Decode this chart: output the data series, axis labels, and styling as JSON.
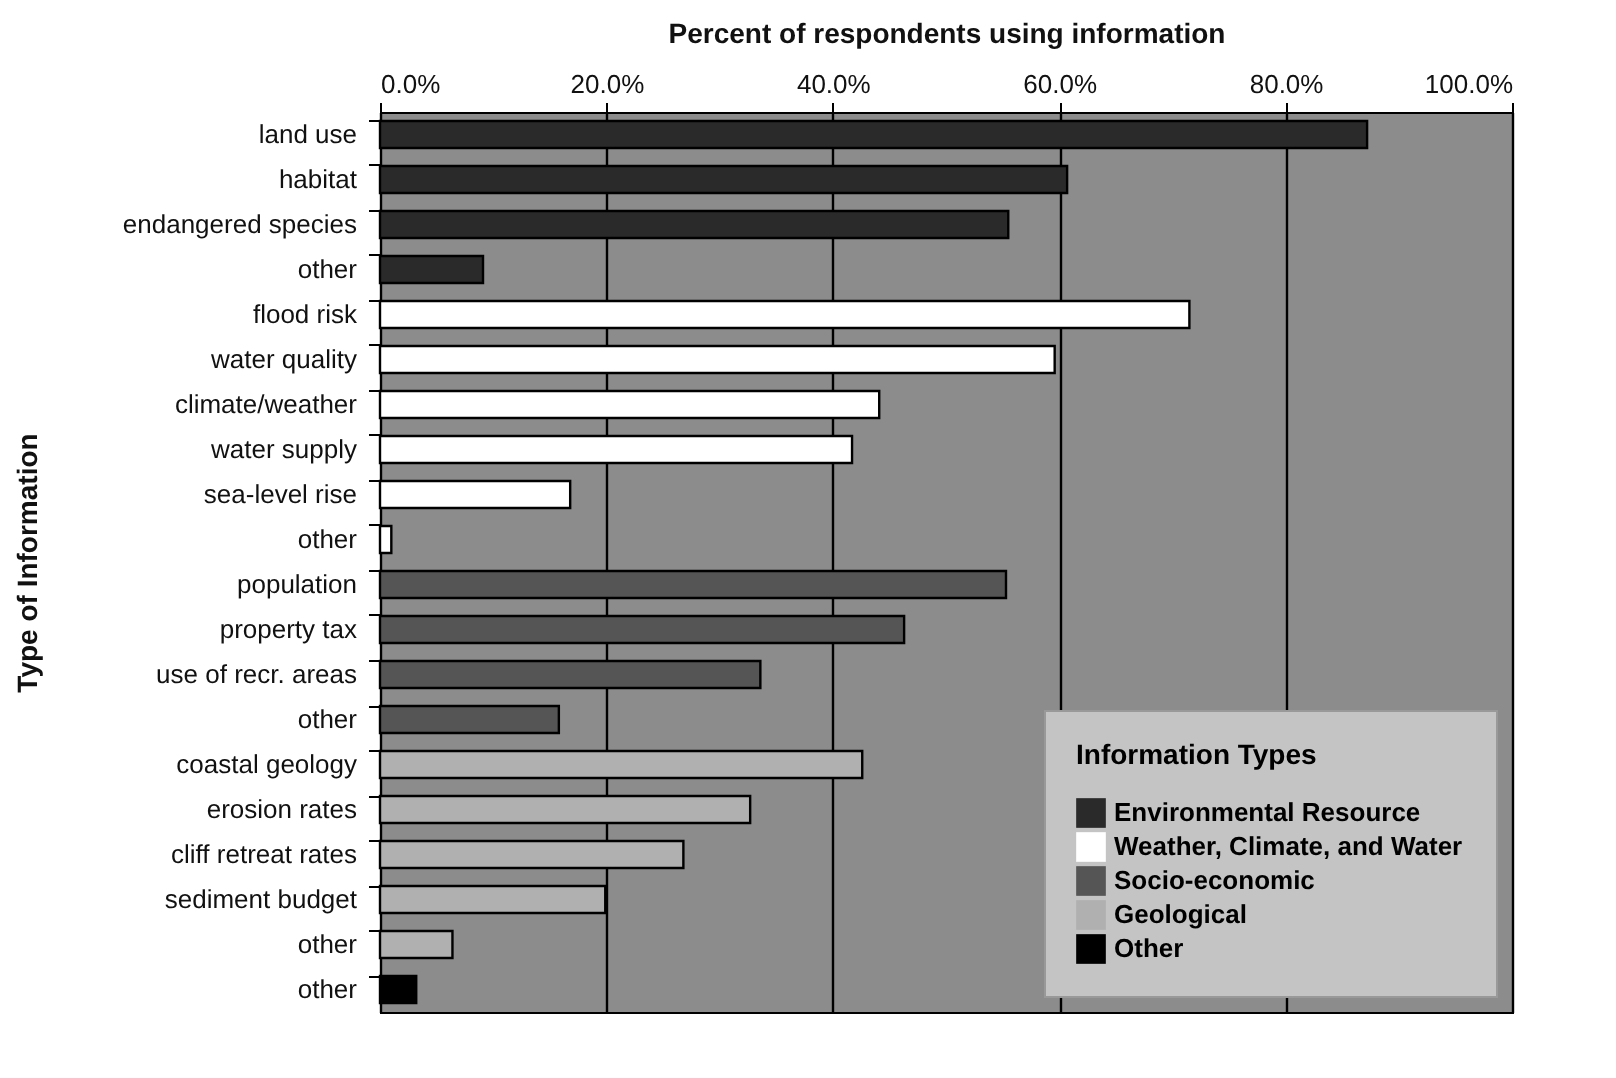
{
  "chart_data": {
    "type": "bar",
    "orientation": "horizontal",
    "xlabel": "Percent of respondents using information",
    "ylabel": "Type of Information",
    "legend_title": "Information Types",
    "legend": "bottom right",
    "grid": "x",
    "categories": [
      "land use",
      "habitat",
      "endangered species",
      "other",
      "flood risk",
      "water quality",
      "climate/weather",
      "water supply",
      "sea-level rise",
      "other",
      "population",
      "property tax",
      "use of recr. areas",
      "other",
      "coastal geology",
      "erosion rates",
      "cliff retreat rates",
      "sediment budget",
      "other",
      "other"
    ],
    "xlim": [
      0,
      100
    ],
    "xticks": [
      {
        "value": 0,
        "label": "0.0%"
      },
      {
        "value": 20,
        "label": "20.0%"
      },
      {
        "value": 40,
        "label": "40.0%"
      },
      {
        "value": 60,
        "label": "60.0%"
      },
      {
        "value": 80,
        "label": "80.0%"
      },
      {
        "value": 100,
        "label": "100.0%"
      }
    ],
    "series": [
      {
        "name": "Environmental Resource",
        "color": "#2a2a2a",
        "values": [
          87.2,
          60.7,
          55.5,
          9.1,
          null,
          null,
          null,
          null,
          null,
          null,
          null,
          null,
          null,
          null,
          null,
          null,
          null,
          null,
          null,
          null
        ]
      },
      {
        "name": "Weather, Climate, and Water",
        "color": "#ffffff",
        "values": [
          null,
          null,
          null,
          null,
          71.5,
          59.6,
          44.1,
          41.7,
          16.8,
          1.0,
          null,
          null,
          null,
          null,
          null,
          null,
          null,
          null,
          null,
          null
        ]
      },
      {
        "name": "Socio-economic",
        "color": "#555555",
        "values": [
          null,
          null,
          null,
          null,
          null,
          null,
          null,
          null,
          null,
          null,
          55.3,
          46.3,
          33.6,
          15.8,
          null,
          null,
          null,
          null,
          null,
          null
        ]
      },
      {
        "name": "Geological",
        "color": "#b0b0b0",
        "values": [
          null,
          null,
          null,
          null,
          null,
          null,
          null,
          null,
          null,
          null,
          null,
          null,
          null,
          null,
          42.6,
          32.7,
          26.8,
          19.9,
          6.4,
          null
        ]
      },
      {
        "name": "Other",
        "color": "#000000",
        "values": [
          null,
          null,
          null,
          null,
          null,
          null,
          null,
          null,
          null,
          null,
          null,
          null,
          null,
          null,
          null,
          null,
          null,
          null,
          null,
          3.2
        ]
      }
    ]
  }
}
